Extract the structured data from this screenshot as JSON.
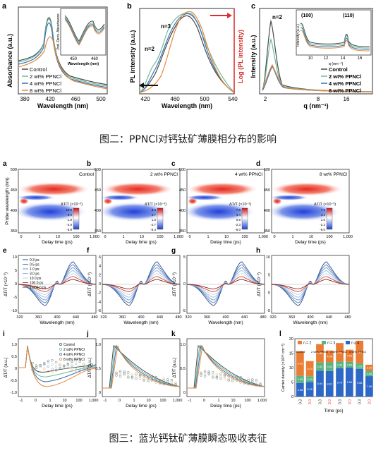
{
  "fig2": {
    "a": {
      "label": "a",
      "ylabel": "Absorbance (a.u.)",
      "xlabel": "Wavelength (nm)",
      "xticks": [
        "380",
        "420",
        "460",
        "500"
      ],
      "legend": [
        "Control",
        "2 wt% PPNCl",
        "4 wt% PPNCl",
        "8 wt% PPNCl"
      ],
      "inset_ylabel": "2nd. Deriv. Absorbance",
      "inset_xlabel": "Wavelength (nm)",
      "inset_xticks": [
        "450",
        "460"
      ]
    },
    "b": {
      "label": "b",
      "ylabel": "PL intensity (a.u.)",
      "ylabel_right": "Log (PL intensity)",
      "xlabel": "Wavelength (nm)",
      "xticks": [
        "420",
        "460",
        "500",
        "540"
      ],
      "annotations": [
        "n=3",
        "n=2"
      ]
    },
    "c": {
      "label": "c",
      "ylabel": "Intensity (a.u.)",
      "xlabel": "q (nm⁻¹)",
      "xticks": [
        "2",
        "8",
        "16"
      ],
      "annotation": "n=2",
      "inset_peaks": [
        "(100)",
        "(110)"
      ],
      "inset_ylabel": "Intensity (a.u.)",
      "inset_xlabel": "q (nm⁻¹)",
      "inset_xticks": [
        "10",
        "12",
        "14",
        "16"
      ],
      "legend": [
        "Control",
        "2 wt% PPNCl",
        "4 wt% PPNCl",
        "8 wt% PPNCl"
      ]
    },
    "caption": "图二：PPNCl对钙钛矿薄膜相分布的影响"
  },
  "fig3": {
    "maps": [
      {
        "label": "a",
        "title": "Control",
        "scale": [
          "10.0",
          "8.0",
          "-1.9",
          "-3.9",
          "-5.8"
        ]
      },
      {
        "label": "b",
        "title": "2 wt% PPNCl",
        "scale": [
          "6.4",
          "4.7",
          "1.0",
          "-2.7",
          "-6.4"
        ]
      },
      {
        "label": "c",
        "title": "4 wt% PPNCl",
        "scale": [
          "7.8",
          "4.4",
          "0.6",
          "-2.3",
          "-6.0"
        ]
      },
      {
        "label": "d",
        "title": "8 wt% PPNCl",
        "scale": [
          "7.2",
          "4.2",
          "1.0",
          "-2.2",
          "-6.0"
        ]
      }
    ],
    "map_ylabel": "Probe wavelength (nm)",
    "map_yticks": [
      "500",
      "450",
      "400",
      "350"
    ],
    "map_xlabel": "Delay time (ps)",
    "map_xticks": [
      "0",
      "1",
      "10",
      "100",
      "1,000"
    ],
    "map_scale_title": "ΔT/T (×10⁻³)",
    "spectra": [
      {
        "label": "e",
        "yticks": [
          "10",
          "5",
          "0",
          "-5",
          "-10"
        ]
      },
      {
        "label": "f",
        "yticks": [
          "6",
          "4",
          "2",
          "0",
          "-2",
          "-4",
          "-6"
        ]
      },
      {
        "label": "g",
        "yticks": [
          "5",
          "0",
          "-5"
        ]
      },
      {
        "label": "h",
        "yticks": [
          "10",
          "5",
          "0",
          "-5"
        ]
      }
    ],
    "spectra_ylabel": "ΔT/T (×10⁻³)",
    "spectra_xlabel": "Wavelength (nm)",
    "spectra_xticks": [
      "320",
      "360",
      "400",
      "440",
      "480"
    ],
    "spectra_legend": [
      "0.3 ps",
      "0.5 ps",
      "1.0 ps",
      "3.0 ps",
      "10.0 ps",
      "100.0 ps",
      "1,000.0 ps"
    ],
    "kinetics": [
      {
        "label": "i",
        "yticks": [
          "1.0",
          "0.5",
          "0",
          "-0.5",
          "-1.0"
        ],
        "legend": [
          "Control",
          "2 wt% PPNCl",
          "4 wt% PPNCl",
          "8 wt% PPNCl"
        ]
      },
      {
        "label": "j",
        "yticks": [
          "1.0",
          "0.5",
          "0"
        ]
      },
      {
        "label": "k",
        "yticks": [
          "1.0",
          "0.5",
          "0"
        ]
      }
    ],
    "kinetics_ylabel": "ΔT/T (a.u.)",
    "kinetics_xlabel": "Delay time (ps)",
    "kinetics_xticks": [
      "-1",
      "0",
      "1",
      "10",
      "100",
      "1,000"
    ],
    "bar": {
      "label": "l",
      "ylabel": "Carrier density (×10¹⁸ cm⁻³)",
      "xlabel": "Time (ps)",
      "yticks": [
        "20",
        "15",
        "10",
        "5",
        "0"
      ],
      "legend": [
        "n = 2",
        "n = 3",
        "n ≥ 4"
      ],
      "groups": [
        "Control",
        "2 wt% PPNCl",
        "4 wt% PPNCl",
        "8 wt% PPNCl"
      ],
      "xticks": [
        "0.3",
        "3.0",
        "0.3",
        "3.0",
        "0.3",
        "3.0",
        "0.3",
        "3.0"
      ],
      "bars": [
        {
          "n2": 8.42,
          "n3": 2.55,
          "n4": 4.68,
          "labels": [
            "8.42",
            "2.55",
            "4.68"
          ]
        },
        {
          "n2": 5.24,
          "n3": 2.0,
          "n4": 5.02,
          "labels": [
            "5.24",
            "2.00",
            "5.02"
          ]
        },
        {
          "n2": 6.36,
          "n3": 2.82,
          "n4": 8.94,
          "labels": [
            "6.36",
            "2.82",
            "8.94"
          ]
        },
        {
          "n2": 4.08,
          "n3": 3.03,
          "n4": 8.81,
          "labels": [
            "4.08",
            "3.03",
            "8.81"
          ]
        },
        {
          "n2": 6.41,
          "n3": 2.3,
          "n4": 9.79,
          "labels": [
            "6.41",
            "2.30",
            "9.79"
          ]
        },
        {
          "n2": 4.2,
          "n3": 2.0,
          "n4": 9.99,
          "labels": [
            "4.20",
            "2.00",
            "9.99"
          ]
        },
        {
          "n2": 7.81,
          "n3": 1.91,
          "n4": 9.58,
          "labels": [
            "7.81",
            "1.91",
            "9.58"
          ]
        },
        {
          "n2": 2.1,
          "n3": 1.84,
          "n4": 7.06,
          "labels": [
            "2.10",
            "1.84",
            "7.06"
          ]
        }
      ]
    },
    "caption": "图三：蓝光钙钛矿薄膜瞬态吸收表征"
  },
  "colors": {
    "control": "#4a4a4a",
    "wt2": "#6fba96",
    "wt4": "#3b6fb5",
    "wt8": "#e58a3a",
    "n2": "#ea7d34",
    "n3": "#5bb383",
    "n4": "#2e68c7",
    "red": "#d8302c"
  }
}
